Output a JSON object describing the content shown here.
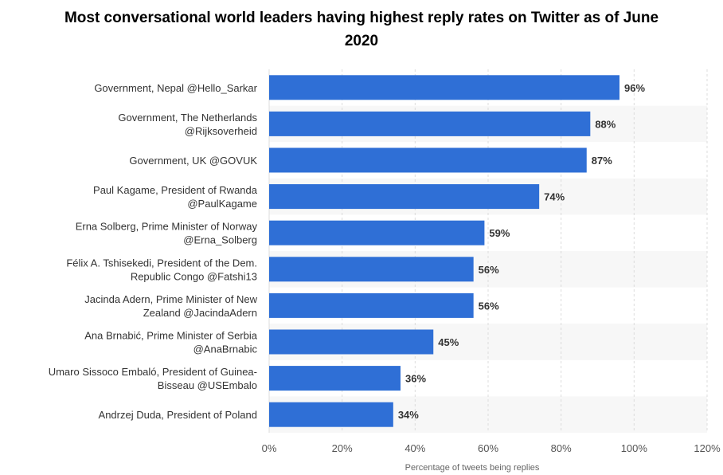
{
  "title": "Most conversational world leaders having highest reply rates on Twitter as of June 2020",
  "chart_data": {
    "type": "bar",
    "orientation": "horizontal",
    "title": "Most conversational world leaders having highest reply rates on Twitter as of June 2020",
    "xlabel": "Percentage of tweets being replies",
    "ylabel": "",
    "xlim": [
      0,
      120
    ],
    "xticks": [
      "0%",
      "20%",
      "40%",
      "60%",
      "80%",
      "100%",
      "120%"
    ],
    "grid": true,
    "bar_color": "#2f6fd6",
    "categories": [
      [
        "Government, Nepal @Hello_Sarkar"
      ],
      [
        "Government, The Netherlands",
        "@Rijksoverheid"
      ],
      [
        "Government, UK @GOVUK"
      ],
      [
        "Paul Kagame, President of Rwanda",
        "@PaulKagame"
      ],
      [
        "Erna Solberg, Prime Minister of Norway",
        "@Erna_Solberg"
      ],
      [
        "Félix A. Tshisekedi, President of the Dem.",
        "Republic Congo @Fatshi13"
      ],
      [
        "Jacinda Adern, Prime Minister of New",
        "Zealand @JacindaAdern"
      ],
      [
        "Ana Brnabić, Prime Minister of Serbia",
        "@AnaBrnabic"
      ],
      [
        "Umaro Sissoco Embaló, President of Guinea-",
        "Bisseau @USEmbalo"
      ],
      [
        "Andrzej Duda, President of Poland"
      ]
    ],
    "values": [
      96,
      88,
      87,
      74,
      59,
      56,
      56,
      45,
      36,
      34
    ],
    "value_labels": [
      "96%",
      "88%",
      "87%",
      "74%",
      "59%",
      "56%",
      "56%",
      "45%",
      "36%",
      "34%"
    ]
  }
}
